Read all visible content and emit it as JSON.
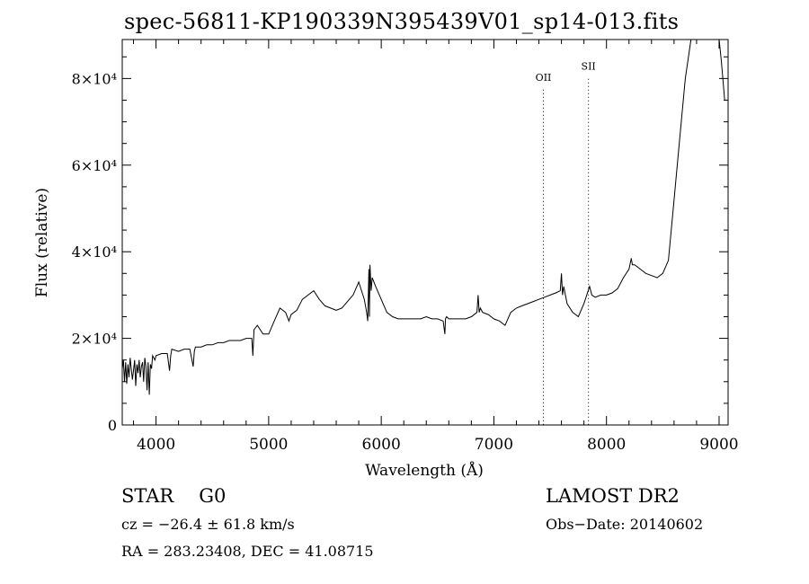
{
  "chart_data": {
    "type": "line",
    "title": "spec-56811-KP190339N395439V01_sp14-013.fits",
    "xlabel": "Wavelength (Å)",
    "ylabel": "Flux (relative)",
    "xlim": [
      3700,
      9080
    ],
    "ylim": [
      0,
      89000
    ],
    "xticks": [
      4000,
      5000,
      6000,
      7000,
      8000,
      9000
    ],
    "yticks": [
      {
        "value": 0,
        "label": "0"
      },
      {
        "value": 20000,
        "label": "2×10⁴"
      },
      {
        "value": 40000,
        "label": "4×10⁴"
      },
      {
        "value": 60000,
        "label": "6×10⁴"
      },
      {
        "value": 80000,
        "label": "8×10⁴"
      }
    ],
    "grid": false,
    "line_color": "#000000",
    "annotations": [
      {
        "label": "OII",
        "x": 7440,
        "label_y": 79500
      },
      {
        "label": "SII",
        "x": 7840,
        "label_y": 82000
      }
    ],
    "series": [
      {
        "x": [
          3700,
          3710,
          3720,
          3730,
          3740,
          3750,
          3760,
          3770,
          3780,
          3790,
          3800,
          3810,
          3820,
          3830,
          3840,
          3850,
          3860,
          3870,
          3880,
          3890,
          3900,
          3910,
          3920,
          3930,
          3940,
          3950,
          3960,
          3970,
          3980,
          3990,
          4000,
          4050,
          4100,
          4120,
          4130,
          4140,
          4200,
          4250,
          4300,
          4330,
          4340,
          4350,
          4400,
          4450,
          4500,
          4550,
          4600,
          4650,
          4700,
          4750,
          4800,
          4850,
          4860,
          4870,
          4900,
          4950,
          5000,
          5050,
          5100,
          5150,
          5180,
          5200,
          5250,
          5300,
          5350,
          5400,
          5450,
          5500,
          5550,
          5600,
          5650,
          5700,
          5750,
          5800,
          5850,
          5870,
          5880,
          5890,
          5895,
          5900,
          5910,
          5920,
          5950,
          6000,
          6050,
          6100,
          6150,
          6200,
          6250,
          6300,
          6350,
          6400,
          6450,
          6500,
          6550,
          6560,
          6565,
          6570,
          6580,
          6600,
          6650,
          6700,
          6750,
          6800,
          6850,
          6860,
          6870,
          6880,
          6900,
          6950,
          7000,
          7050,
          7100,
          7150,
          7200,
          7250,
          7300,
          7350,
          7400,
          7450,
          7500,
          7550,
          7590,
          7600,
          7610,
          7620,
          7650,
          7700,
          7750,
          7800,
          7850,
          7870,
          7900,
          7950,
          8000,
          8050,
          8100,
          8150,
          8200,
          8220,
          8230,
          8250,
          8300,
          8350,
          8400,
          8450,
          8500,
          8550,
          8600,
          8650,
          8700,
          8750,
          8780,
          8800,
          8850,
          8900,
          8950,
          9000,
          9020,
          9050
        ],
        "y": [
          13000,
          15000,
          10000,
          14500,
          9500,
          14000,
          11000,
          15500,
          13000,
          10500,
          12500,
          15000,
          9000,
          14000,
          12000,
          15000,
          11000,
          13500,
          14500,
          10000,
          15500,
          13500,
          8000,
          14500,
          7000,
          14000,
          13000,
          16000,
          15500,
          15000,
          16000,
          16500,
          16500,
          12500,
          16000,
          17500,
          17000,
          17500,
          17500,
          13500,
          17000,
          18000,
          18000,
          18500,
          18500,
          19000,
          19000,
          19500,
          19500,
          19500,
          20000,
          20000,
          16000,
          22000,
          23000,
          21000,
          21000,
          24000,
          27000,
          26000,
          24000,
          25500,
          26500,
          29000,
          30000,
          31000,
          29000,
          27500,
          27000,
          26500,
          27000,
          28500,
          30000,
          33000,
          29000,
          26000,
          24000,
          36000,
          25000,
          37000,
          31000,
          34000,
          32000,
          29000,
          26000,
          25000,
          24500,
          24500,
          24500,
          24500,
          24500,
          25000,
          24500,
          24500,
          24000,
          22000,
          21000,
          24500,
          25000,
          24500,
          24500,
          24500,
          24500,
          25000,
          26000,
          30000,
          26000,
          27000,
          26000,
          25500,
          24500,
          24000,
          23000,
          26000,
          27000,
          27500,
          28000,
          28500,
          29000,
          29500,
          30000,
          30500,
          31000,
          35000,
          30000,
          32000,
          28000,
          26000,
          25000,
          28000,
          32000,
          30000,
          29500,
          30000,
          30000,
          30500,
          31500,
          34000,
          36000,
          38500,
          37000,
          37000,
          36000,
          35000,
          34500,
          34000,
          35000,
          38000,
          52000,
          66000,
          80000,
          89000,
          89000,
          89000,
          89000,
          89000,
          89000,
          89000,
          84000,
          75000
        ]
      }
    ]
  },
  "labels": {
    "object_class": "STAR",
    "subclass": "G0",
    "survey": "LAMOST DR2",
    "redshift": "cz = −26.4 ± 61.8 km/s",
    "obs_date": "Obs−Date: 20140602",
    "coords": "RA = 283.23408, DEC =  41.08715"
  }
}
